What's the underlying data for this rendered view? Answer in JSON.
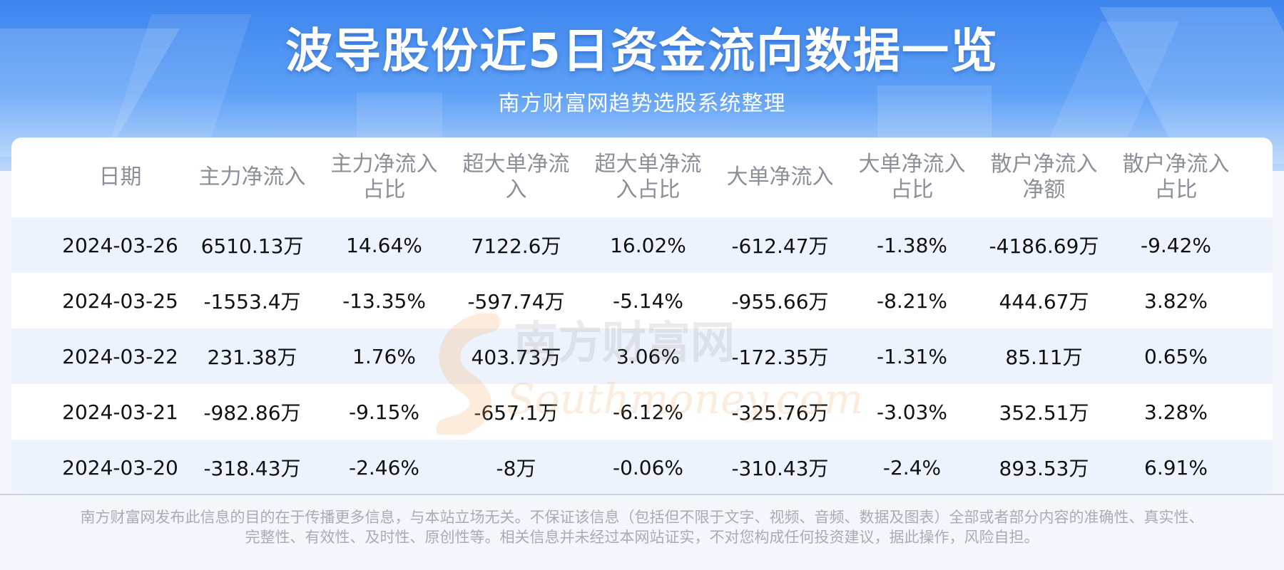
{
  "header": {
    "title": "波导股份近5日资金流向数据一览",
    "subtitle": "南方财富网趋势选股系统整理"
  },
  "table": {
    "columns": [
      [
        "日期"
      ],
      [
        "主力净流入"
      ],
      [
        "主力净流入",
        "占比"
      ],
      [
        "超大单净流",
        "入"
      ],
      [
        "超大单净流",
        "入占比"
      ],
      [
        "大单净流入"
      ],
      [
        "大单净流入",
        "占比"
      ],
      [
        "散户净流入",
        "净额"
      ],
      [
        "散户净流入",
        "占比"
      ]
    ],
    "rows": [
      [
        "2024-03-26",
        "6510.13万",
        "14.64%",
        "7122.6万",
        "16.02%",
        "-612.47万",
        "-1.38%",
        "-4186.69万",
        "-9.42%"
      ],
      [
        "2024-03-25",
        "-1553.4万",
        "-13.35%",
        "-597.74万",
        "-5.14%",
        "-955.66万",
        "-8.21%",
        "444.67万",
        "3.82%"
      ],
      [
        "2024-03-22",
        "231.38万",
        "1.76%",
        "403.73万",
        "3.06%",
        "-172.35万",
        "-1.31%",
        "85.11万",
        "0.65%"
      ],
      [
        "2024-03-21",
        "-982.86万",
        "-9.15%",
        "-657.1万",
        "-6.12%",
        "-325.76万",
        "-3.03%",
        "352.51万",
        "3.28%"
      ],
      [
        "2024-03-20",
        "-318.43万",
        "-2.46%",
        "-8万",
        "-0.06%",
        "-310.43万",
        "-2.4%",
        "893.53万",
        "6.91%"
      ]
    ]
  },
  "watermark": {
    "cn": "南方财富网",
    "en": "Southmoney.com"
  },
  "footer": {
    "line1": "南方财富网发布此信息的目的在于传播更多信息，与本站立场无关。不保证该信息（包括但不限于文字、视频、音频、数据及图表）全部或者部分内容的准确性、真实性、",
    "line2": "完整性、有效性、及时性、原创性等。相关信息并未经过本网站证实，不对您构成任何投资建议，据此操作，风险自担。"
  },
  "colors": {
    "header_top": "#3d86ef",
    "header_bottom": "#bcd8fb",
    "row_alt": "#edf3fd",
    "header_text": "#8a8f99",
    "cell_text": "#111111",
    "footer_text": "#a8adb5"
  }
}
